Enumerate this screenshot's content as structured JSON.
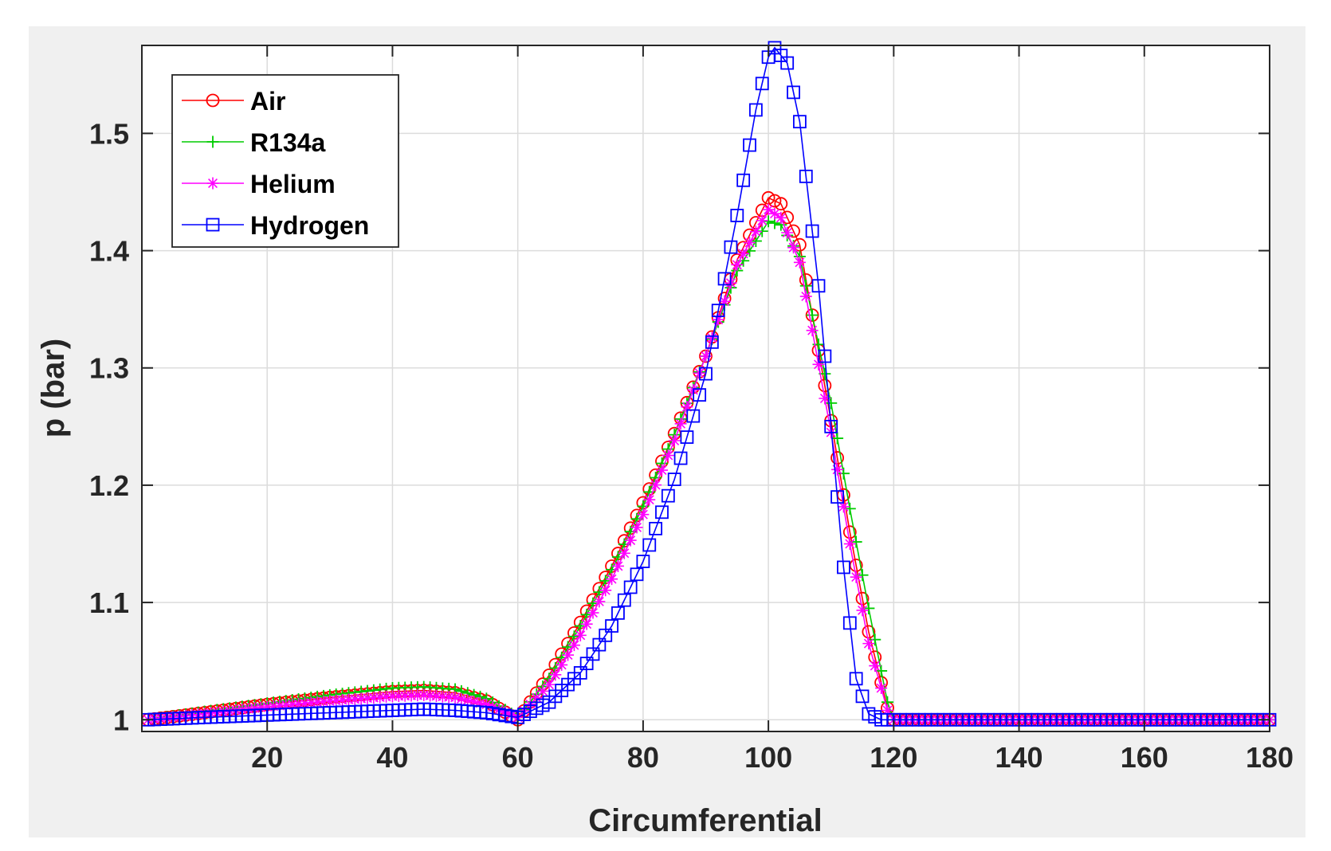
{
  "chart_data": {
    "type": "line",
    "title": "",
    "xlabel": "Circumferential",
    "ylabel": "p (bar)",
    "xlim": [
      0,
      180
    ],
    "ylim": [
      0.99,
      1.575
    ],
    "xticks": [
      20,
      40,
      60,
      80,
      100,
      120,
      140,
      160,
      180
    ],
    "yticks": [
      1,
      1.1,
      1.2,
      1.3,
      1.4,
      1.5
    ],
    "xtick_labels": [
      "20",
      "40",
      "60",
      "80",
      "100",
      "120",
      "140",
      "160",
      "180"
    ],
    "ytick_labels": [
      "1",
      "1.1",
      "1.2",
      "1.3",
      "1.4",
      "1.5"
    ],
    "grid": true,
    "legend_position": "top-left",
    "series": [
      {
        "name": "Air",
        "color": "#ff0000",
        "marker": "circle",
        "x": [
          1,
          10,
          20,
          30,
          40,
          45,
          50,
          55,
          60,
          65,
          70,
          75,
          80,
          85,
          90,
          95,
          100,
          102,
          105,
          110,
          113,
          116,
          119,
          120,
          130,
          140,
          150,
          160,
          170,
          180
        ],
        "y": [
          1.0,
          1.006,
          1.013,
          1.019,
          1.024,
          1.025,
          1.023,
          1.016,
          1.0,
          1.038,
          1.083,
          1.131,
          1.185,
          1.244,
          1.31,
          1.392,
          1.445,
          1.44,
          1.405,
          1.255,
          1.16,
          1.075,
          1.01,
          1.0,
          1.0,
          1.0,
          1.0,
          1.0,
          1.0,
          1.0
        ]
      },
      {
        "name": "R134a",
        "color": "#00cc00",
        "marker": "plus",
        "x": [
          1,
          10,
          20,
          30,
          40,
          45,
          50,
          55,
          60,
          65,
          70,
          75,
          80,
          85,
          90,
          95,
          100,
          102,
          105,
          110,
          113,
          116,
          119,
          120,
          130,
          140,
          150,
          160,
          170,
          180
        ],
        "y": [
          1.0,
          1.007,
          1.014,
          1.021,
          1.027,
          1.028,
          1.026,
          1.018,
          1.002,
          1.035,
          1.08,
          1.128,
          1.182,
          1.243,
          1.31,
          1.383,
          1.425,
          1.422,
          1.395,
          1.27,
          1.18,
          1.095,
          1.015,
          1.0,
          1.0,
          1.0,
          1.0,
          1.0,
          1.0,
          1.0
        ]
      },
      {
        "name": "Helium",
        "color": "#ff00ff",
        "marker": "asterisk",
        "x": [
          1,
          10,
          20,
          30,
          40,
          45,
          50,
          55,
          60,
          65,
          70,
          75,
          80,
          85,
          90,
          95,
          100,
          102,
          105,
          110,
          113,
          116,
          119,
          120,
          130,
          140,
          150,
          160,
          170,
          180
        ],
        "y": [
          1.0,
          1.005,
          1.011,
          1.016,
          1.02,
          1.021,
          1.019,
          1.013,
          1.002,
          1.03,
          1.072,
          1.12,
          1.175,
          1.238,
          1.31,
          1.388,
          1.435,
          1.428,
          1.39,
          1.245,
          1.15,
          1.065,
          1.008,
          1.0,
          1.0,
          1.0,
          1.0,
          1.0,
          1.0,
          1.0
        ]
      },
      {
        "name": "Hydrogen",
        "color": "#0000ff",
        "marker": "square",
        "x": [
          1,
          10,
          20,
          30,
          40,
          45,
          50,
          55,
          60,
          65,
          70,
          75,
          80,
          85,
          90,
          95,
          98,
          100,
          101,
          103,
          105,
          108,
          110,
          112,
          114,
          116,
          118,
          120,
          130,
          140,
          150,
          160,
          170,
          180
        ],
        "y": [
          1.0,
          1.002,
          1.004,
          1.006,
          1.008,
          1.009,
          1.008,
          1.006,
          1.002,
          1.015,
          1.04,
          1.08,
          1.135,
          1.205,
          1.295,
          1.43,
          1.52,
          1.565,
          1.573,
          1.56,
          1.51,
          1.37,
          1.25,
          1.13,
          1.035,
          1.005,
          1.0,
          1.0,
          1.0,
          1.0,
          1.0,
          1.0,
          1.0,
          1.0
        ]
      }
    ]
  }
}
